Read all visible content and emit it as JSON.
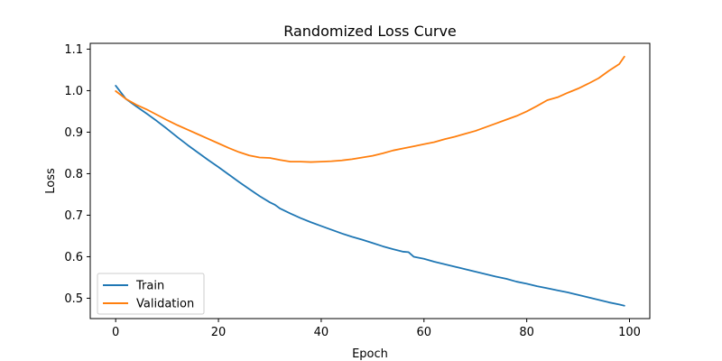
{
  "chart_data": {
    "type": "line",
    "title": "Randomized Loss Curve",
    "xlabel": "Epoch",
    "ylabel": "Loss",
    "xlim": [
      -4.95,
      103.95
    ],
    "ylim": [
      0.451,
      1.114
    ],
    "xticks": [
      0,
      20,
      40,
      60,
      80,
      100
    ],
    "yticks": [
      0.5,
      0.6,
      0.7,
      0.8,
      0.9,
      1.0,
      1.1
    ],
    "xtick_labels": [
      "0",
      "20",
      "40",
      "60",
      "80",
      "100"
    ],
    "ytick_labels": [
      "0.5",
      "0.6",
      "0.7",
      "0.8",
      "0.9",
      "1.0",
      "1.1"
    ],
    "grid": false,
    "legend_position": "lower-left",
    "series": [
      {
        "name": "Train",
        "color": "#1f77b4",
        "x": [
          0,
          2,
          4,
          6,
          8,
          10,
          12,
          14,
          16,
          18,
          20,
          22,
          24,
          26,
          28,
          30,
          31,
          32,
          34,
          36,
          38,
          40,
          42,
          44,
          46,
          48,
          50,
          52,
          54,
          56,
          57,
          58,
          60,
          62,
          64,
          66,
          68,
          70,
          72,
          74,
          76,
          78,
          80,
          82,
          84,
          86,
          88,
          90,
          92,
          94,
          96,
          98,
          99
        ],
        "y": [
          1.012,
          0.98,
          0.962,
          0.945,
          0.927,
          0.908,
          0.888,
          0.869,
          0.851,
          0.833,
          0.816,
          0.798,
          0.78,
          0.763,
          0.746,
          0.731,
          0.725,
          0.716,
          0.704,
          0.693,
          0.683,
          0.674,
          0.665,
          0.656,
          0.648,
          0.641,
          0.633,
          0.625,
          0.618,
          0.612,
          0.611,
          0.6,
          0.595,
          0.588,
          0.582,
          0.576,
          0.57,
          0.564,
          0.558,
          0.552,
          0.547,
          0.54,
          0.535,
          0.529,
          0.524,
          0.519,
          0.514,
          0.508,
          0.502,
          0.496,
          0.49,
          0.485,
          0.482
        ]
      },
      {
        "name": "Validation",
        "color": "#ff7f0e",
        "x": [
          0,
          2,
          4,
          6,
          8,
          10,
          12,
          14,
          16,
          18,
          20,
          22,
          24,
          26,
          28,
          30,
          32,
          34,
          36,
          38,
          40,
          42,
          44,
          46,
          48,
          50,
          52,
          54,
          56,
          58,
          60,
          62,
          64,
          66,
          68,
          70,
          72,
          74,
          76,
          78,
          80,
          82,
          84,
          86,
          88,
          90,
          92,
          94,
          96,
          98,
          99
        ],
        "y": [
          0.999,
          0.98,
          0.966,
          0.955,
          0.942,
          0.929,
          0.917,
          0.906,
          0.895,
          0.884,
          0.873,
          0.862,
          0.852,
          0.844,
          0.839,
          0.838,
          0.833,
          0.829,
          0.829,
          0.828,
          0.829,
          0.83,
          0.832,
          0.835,
          0.839,
          0.843,
          0.849,
          0.856,
          0.861,
          0.866,
          0.871,
          0.876,
          0.883,
          0.889,
          0.896,
          0.903,
          0.912,
          0.921,
          0.93,
          0.939,
          0.95,
          0.963,
          0.977,
          0.984,
          0.995,
          1.005,
          1.017,
          1.03,
          1.048,
          1.064,
          1.082
        ]
      }
    ]
  }
}
